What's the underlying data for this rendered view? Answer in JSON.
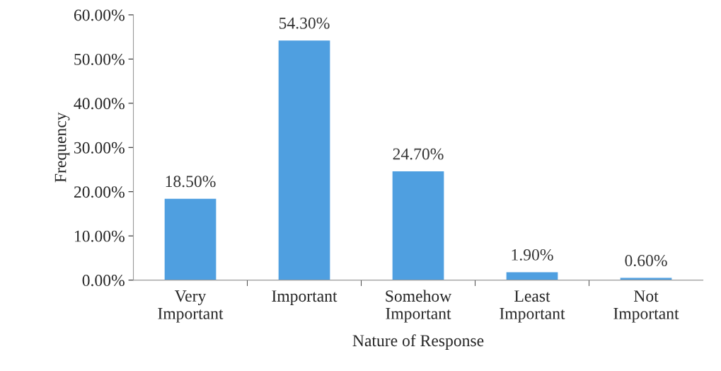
{
  "chart_data": {
    "type": "bar",
    "xlabel": "Nature of Response",
    "ylabel": "Frequency",
    "categories": [
      "Very\nImportant",
      "Important",
      "Somehow\nImportant",
      "Least\nImportant",
      "Not\nImportant"
    ],
    "values": [
      18.5,
      54.3,
      24.7,
      1.9,
      0.6
    ],
    "value_labels": [
      "18.50%",
      "54.30%",
      "24.70%",
      "1.90%",
      "0.60%"
    ],
    "color": "#4f9fe0",
    "ylim": [
      0,
      60
    ],
    "yticks": [
      {
        "value": 0,
        "label": "0.00%"
      },
      {
        "value": 10,
        "label": "10.00%"
      },
      {
        "value": 20,
        "label": "20.00%"
      },
      {
        "value": 30,
        "label": "30.00%"
      },
      {
        "value": 40,
        "label": "40.00%"
      },
      {
        "value": 50,
        "label": "50.00%"
      },
      {
        "value": 60,
        "label": "60.00%"
      }
    ],
    "grid": false
  }
}
